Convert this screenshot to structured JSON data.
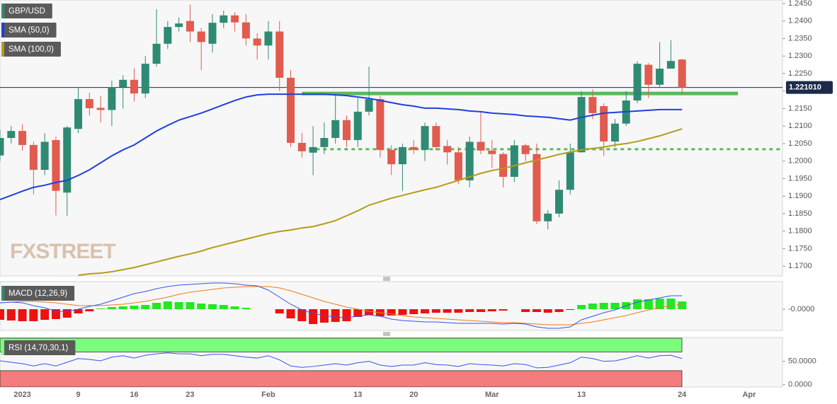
{
  "chart_data": [
    {
      "type": "candlestick",
      "legend": "GBP/USD",
      "legend_color": "#2f8a74",
      "categories": [
        null,
        null,
        "2023",
        null,
        null,
        null,
        null,
        "9",
        null,
        null,
        null,
        null,
        "16",
        null,
        null,
        null,
        null,
        "23",
        null,
        null,
        null,
        null,
        null,
        null,
        "Feb",
        null,
        null,
        null,
        null,
        null,
        null,
        null,
        "13",
        null,
        null,
        null,
        null,
        "20",
        null,
        null,
        null,
        null,
        null,
        null,
        "Mar",
        null,
        null,
        null,
        null,
        null,
        null,
        null,
        "13",
        null,
        null,
        null,
        null,
        null,
        null,
        null,
        null,
        "24",
        null,
        null,
        null,
        null,
        null,
        "Apr"
      ],
      "open": [
        1.2016,
        1.2066,
        1.2086,
        1.2046,
        1.1975,
        1.206,
        1.191,
        1.2092,
        1.2177,
        1.2152,
        1.2146,
        1.2211,
        1.2232,
        1.2193,
        1.2278,
        1.2335,
        1.2383,
        1.24,
        1.237,
        1.2335,
        1.2395,
        1.2416,
        1.2396,
        1.235,
        1.233,
        1.237,
        1.2238,
        1.2052,
        1.2024,
        1.204,
        1.2066,
        1.2117,
        1.206,
        1.2141,
        1.2177,
        1.2032,
        1.1991,
        1.204,
        1.2032,
        1.21,
        1.2043,
        1.2025,
        1.1945,
        1.2055,
        1.203,
        1.202,
        1.1955,
        1.2045,
        1.202,
        1.1828,
        1.185,
        1.1918,
        1.2025,
        1.2183,
        1.2157,
        1.2056,
        1.2107,
        1.2173,
        1.2275,
        1.2218,
        1.2264,
        1.229,
        null,
        null,
        null,
        null,
        null,
        null
      ],
      "high": [
        1.209,
        1.21,
        1.2105,
        1.2055,
        1.208,
        1.207,
        1.21,
        1.221,
        1.2195,
        1.2185,
        1.223,
        1.2245,
        1.2265,
        1.23,
        1.2434,
        1.24,
        1.241,
        1.2447,
        1.238,
        1.242,
        1.243,
        1.2425,
        1.242,
        1.2365,
        1.24,
        1.24,
        1.226,
        1.208,
        1.21,
        1.211,
        1.219,
        1.213,
        1.218,
        1.227,
        1.2185,
        1.2045,
        1.205,
        1.206,
        1.211,
        1.211,
        1.206,
        1.204,
        1.207,
        1.214,
        1.206,
        1.2025,
        1.206,
        1.205,
        1.205,
        1.186,
        1.1945,
        1.205,
        1.22,
        1.2205,
        1.2165,
        1.212,
        1.22,
        1.2285,
        1.228,
        1.234,
        1.2345,
        1.2292,
        null,
        null,
        null,
        null,
        null,
        null
      ],
      "low": [
        1.2,
        1.205,
        1.203,
        1.1905,
        1.196,
        1.1845,
        1.1844,
        1.208,
        1.213,
        1.211,
        1.21,
        1.215,
        1.217,
        1.218,
        1.227,
        1.232,
        1.237,
        1.234,
        1.226,
        1.231,
        1.238,
        1.237,
        1.233,
        1.229,
        1.229,
        1.22,
        1.204,
        1.201,
        1.196,
        1.202,
        1.205,
        1.204,
        1.204,
        1.213,
        1.201,
        1.196,
        1.1915,
        1.202,
        1.2,
        1.203,
        1.199,
        1.1935,
        1.1925,
        1.202,
        1.198,
        1.1925,
        1.194,
        1.2,
        1.182,
        1.1805,
        1.184,
        1.1905,
        1.2025,
        1.212,
        1.2015,
        1.204,
        1.21,
        1.2165,
        1.218,
        1.221,
        1.2265,
        1.219,
        null,
        null,
        null,
        null,
        null,
        null
      ],
      "close": [
        1.2066,
        1.2086,
        1.2046,
        1.1975,
        1.2055,
        1.1915,
        1.2096,
        1.2177,
        1.2151,
        1.2146,
        1.2211,
        1.2232,
        1.2193,
        1.2278,
        1.2335,
        1.2383,
        1.2393,
        1.237,
        1.234,
        1.2395,
        1.2416,
        1.2396,
        1.235,
        1.233,
        1.237,
        1.2238,
        1.2052,
        1.2028,
        1.204,
        1.2066,
        1.2117,
        1.206,
        1.2141,
        1.2177,
        1.2032,
        1.1991,
        1.204,
        1.2032,
        1.21,
        1.204,
        1.2025,
        1.1945,
        1.2055,
        1.203,
        1.202,
        1.1955,
        1.2045,
        1.202,
        1.1828,
        1.185,
        1.1918,
        1.2025,
        1.2183,
        1.2137,
        1.2056,
        1.2107,
        1.2173,
        1.2278,
        1.2218,
        1.2264,
        1.2286,
        1.221,
        null,
        null,
        null,
        null,
        null,
        null
      ],
      "up_color": "#2f8a74",
      "down_color": "#e15b4f",
      "series": [
        {
          "name": "SMA (50,0)",
          "color": "#1f3fe0",
          "values": [
            1.189,
            1.1902,
            1.1914,
            1.1925,
            1.1931,
            1.1939,
            1.1945,
            1.1959,
            1.1975,
            1.1995,
            1.2015,
            1.2032,
            1.2046,
            1.2066,
            1.2086,
            1.2102,
            1.2117,
            1.2127,
            1.2137,
            1.2149,
            1.2161,
            1.2173,
            1.2183,
            1.2189,
            1.2191,
            1.2191,
            1.2191,
            1.2191,
            1.2191,
            1.2191,
            1.2189,
            1.2187,
            1.2183,
            1.2179,
            1.2173,
            1.2167,
            1.2161,
            1.2157,
            1.2151,
            1.2151,
            1.2149,
            1.2147,
            1.2143,
            1.2141,
            1.2137,
            1.2135,
            1.2133,
            1.2129,
            1.2127,
            1.2125,
            1.2121,
            1.2117,
            1.2125,
            1.2131,
            1.2137,
            1.2139,
            1.2141,
            1.2143,
            1.2145,
            1.2147,
            1.2147,
            1.2147,
            null,
            null,
            null,
            null,
            null,
            null
          ]
        },
        {
          "name": "SMA (100,0)",
          "color": "#b59b1a",
          "values": [
            null,
            null,
            null,
            null,
            null,
            null,
            null,
            1.1674,
            1.1678,
            1.168,
            1.1684,
            1.169,
            1.1696,
            1.1704,
            1.1712,
            1.172,
            1.1728,
            1.1735,
            1.1743,
            1.1753,
            1.1761,
            1.1769,
            1.1777,
            1.1785,
            1.1793,
            1.1799,
            1.1803,
            1.1809,
            1.1813,
            1.1821,
            1.183,
            1.1844,
            1.1858,
            1.1874,
            1.1884,
            1.1894,
            1.1902,
            1.191,
            1.1918,
            1.1925,
            1.1935,
            1.1945,
            1.1955,
            1.1965,
            1.1973,
            1.1979,
            1.1987,
            1.1995,
            1.2003,
            1.2011,
            1.2019,
            1.2026,
            1.2032,
            1.2036,
            1.204,
            1.2046,
            1.205,
            1.2056,
            1.2064,
            1.2072,
            1.2082,
            1.2092,
            null,
            null,
            null,
            null,
            null,
            null
          ]
        }
      ],
      "levels": [
        {
          "value": 1.2193,
          "color": "#5cb85c",
          "style": "solid",
          "from": 27,
          "to": 66
        },
        {
          "value": 1.2034,
          "color": "#5cb85c",
          "style": "dotted",
          "from": 27
        }
      ],
      "last_price": {
        "value": 1.22101,
        "label": "1.221010"
      },
      "watermark": "FXSTREET",
      "ylim": [
        1.1672,
        1.246
      ],
      "yticks": [
        {
          "value": 1.245,
          "label": "1.2450"
        },
        {
          "value": 1.24,
          "label": "1.2400"
        },
        {
          "value": 1.235,
          "label": "1.2350"
        },
        {
          "value": 1.23,
          "label": "1.2300"
        },
        {
          "value": 1.225,
          "label": "1.2250"
        },
        {
          "value": 1.22,
          "label": "1.2200"
        },
        {
          "value": 1.215,
          "label": "1.2150"
        },
        {
          "value": 1.21,
          "label": "1.2100"
        },
        {
          "value": 1.205,
          "label": "1.2050"
        },
        {
          "value": 1.2,
          "label": "1.2000"
        },
        {
          "value": 1.195,
          "label": "1.1950"
        },
        {
          "value": 1.19,
          "label": "1.1900"
        },
        {
          "value": 1.185,
          "label": "1.1850"
        },
        {
          "value": 1.18,
          "label": "1.1800"
        },
        {
          "value": 1.175,
          "label": "1.1750"
        },
        {
          "value": 1.17,
          "label": "1.1700"
        }
      ]
    },
    {
      "type": "macd",
      "legend": "MACD (12,26,9)",
      "legend_color": "#2f8a74",
      "macd": {
        "color": "#3355ee",
        "values": [
          0.0009,
          0.001,
          0.0009,
          0.0005,
          0.0002,
          -0.0003,
          -0.0003,
          0,
          0.0004,
          0.0007,
          0.0012,
          0.0017,
          0.0022,
          0.0025,
          0.0029,
          0.0032,
          0.0034,
          0.0035,
          0.0036,
          0.0037,
          0.0037,
          0.0036,
          0.0034,
          0.0033,
          0.0027,
          0.0017,
          0.0007,
          -0.0001,
          -0.0006,
          -0.0009,
          -0.0011,
          -0.0012,
          -0.001,
          -0.0008,
          -0.001,
          -0.0014,
          -0.0016,
          -0.0017,
          -0.0018,
          -0.0018,
          -0.0019,
          -0.002,
          -0.002,
          -0.002,
          -0.002,
          -0.0021,
          -0.002,
          -0.0021,
          -0.0025,
          -0.0027,
          -0.0027,
          -0.0025,
          -0.0015,
          -0.001,
          -0.0005,
          -0.0001,
          0.0005,
          0.001,
          0.0013,
          0.0016,
          0.0019,
          0.0019,
          null,
          null,
          null,
          null,
          null,
          null
        ]
      },
      "signal": {
        "color": "#f07a1a",
        "values": [
          0.0009,
          0.001,
          0.0011,
          0.0011,
          0.001,
          0.0009,
          0.0007,
          0.0005,
          0.0005,
          0.0005,
          0.0006,
          0.0007,
          0.0009,
          0.0011,
          0.0014,
          0.0017,
          0.0021,
          0.0024,
          0.0026,
          0.0028,
          0.003,
          0.0031,
          0.0032,
          0.0032,
          0.0032,
          0.003,
          0.0026,
          0.0021,
          0.0016,
          0.0011,
          0.0007,
          0.0003,
          0,
          -0.0003,
          -0.0005,
          -0.0007,
          -0.0009,
          -0.0011,
          -0.0012,
          -0.0013,
          -0.0014,
          -0.0015,
          -0.0016,
          -0.0017,
          -0.0018,
          -0.0019,
          -0.0019,
          -0.002,
          -0.0021,
          -0.0022,
          -0.0022,
          -0.0022,
          -0.002,
          -0.0018,
          -0.0015,
          -0.0012,
          -0.0009,
          -0.0005,
          -0.0001,
          0.0002,
          0.0005,
          0.0007,
          null,
          null,
          null,
          null,
          null,
          null
        ]
      },
      "histogram": {
        "up_color": "#22e822",
        "down_color": "#ee1111",
        "values": [
          -0.0015,
          -0.0016,
          -0.0017,
          -0.0017,
          -0.0015,
          -0.0014,
          -0.0012,
          -0.0006,
          -0.0003,
          0.0001,
          0.0003,
          0.0004,
          0.0005,
          0.0006,
          0.0009,
          0.0011,
          0.001,
          0.001,
          0.0008,
          0.0007,
          0.0006,
          0.0004,
          0.0002,
          0,
          0,
          -0.0006,
          -0.0013,
          -0.0017,
          -0.0021,
          -0.0019,
          -0.0018,
          -0.0017,
          -0.0011,
          -0.0008,
          -0.001,
          -0.0009,
          -0.0008,
          -0.0007,
          -0.0006,
          -0.0005,
          -0.0005,
          -0.0005,
          -0.0004,
          -0.0004,
          -0.0003,
          -0.0002,
          0,
          -0.0004,
          -0.0004,
          -0.0005,
          -0.0004,
          -0.0001,
          0.0006,
          0.0008,
          0.0009,
          0.0009,
          0.001,
          0.0014,
          0.0014,
          0.0015,
          0.0015,
          0.0011,
          null,
          null,
          null,
          null,
          null,
          null
        ]
      },
      "ylim": [
        -0.003,
        0.0039
      ],
      "yticks": [
        {
          "value": 0,
          "label": "-0.0000"
        }
      ]
    },
    {
      "type": "rsi",
      "legend": "RSI (14,70,30,1)",
      "legend_color": "#7cfc7c",
      "color": "#3355ee",
      "values": [
        51,
        48,
        45,
        40,
        45,
        40,
        48,
        56,
        54,
        51,
        59,
        62,
        57,
        63,
        66,
        68,
        66,
        66,
        62,
        65,
        65,
        62,
        59,
        57,
        62,
        53,
        40,
        37,
        39,
        42,
        45,
        42,
        47,
        50,
        42,
        39,
        42,
        42,
        47,
        43,
        42,
        39,
        45,
        43,
        42,
        40,
        45,
        43,
        36,
        37,
        42,
        47,
        59,
        56,
        50,
        51,
        56,
        62,
        57,
        62,
        63,
        56,
        null,
        null,
        null,
        null,
        null,
        null
      ],
      "levels": [
        {
          "value": 70,
          "color": "#7cfc7c"
        },
        {
          "value": 30,
          "color": "#f47c7c"
        }
      ],
      "ylim": [
        -5,
        101
      ],
      "yticks": [
        {
          "value": 50,
          "label": "50.0000"
        },
        {
          "value": 0,
          "label": "0.0000"
        }
      ]
    }
  ]
}
